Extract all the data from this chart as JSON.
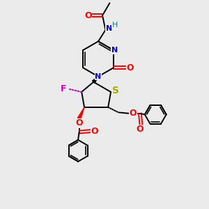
{
  "bg_color": "#ebebeb",
  "colors": {
    "N": "#0000cc",
    "O": "#ff0000",
    "S": "#aaaa00",
    "F": "#cc00cc",
    "H_label": "#008080",
    "C": "#000000"
  }
}
